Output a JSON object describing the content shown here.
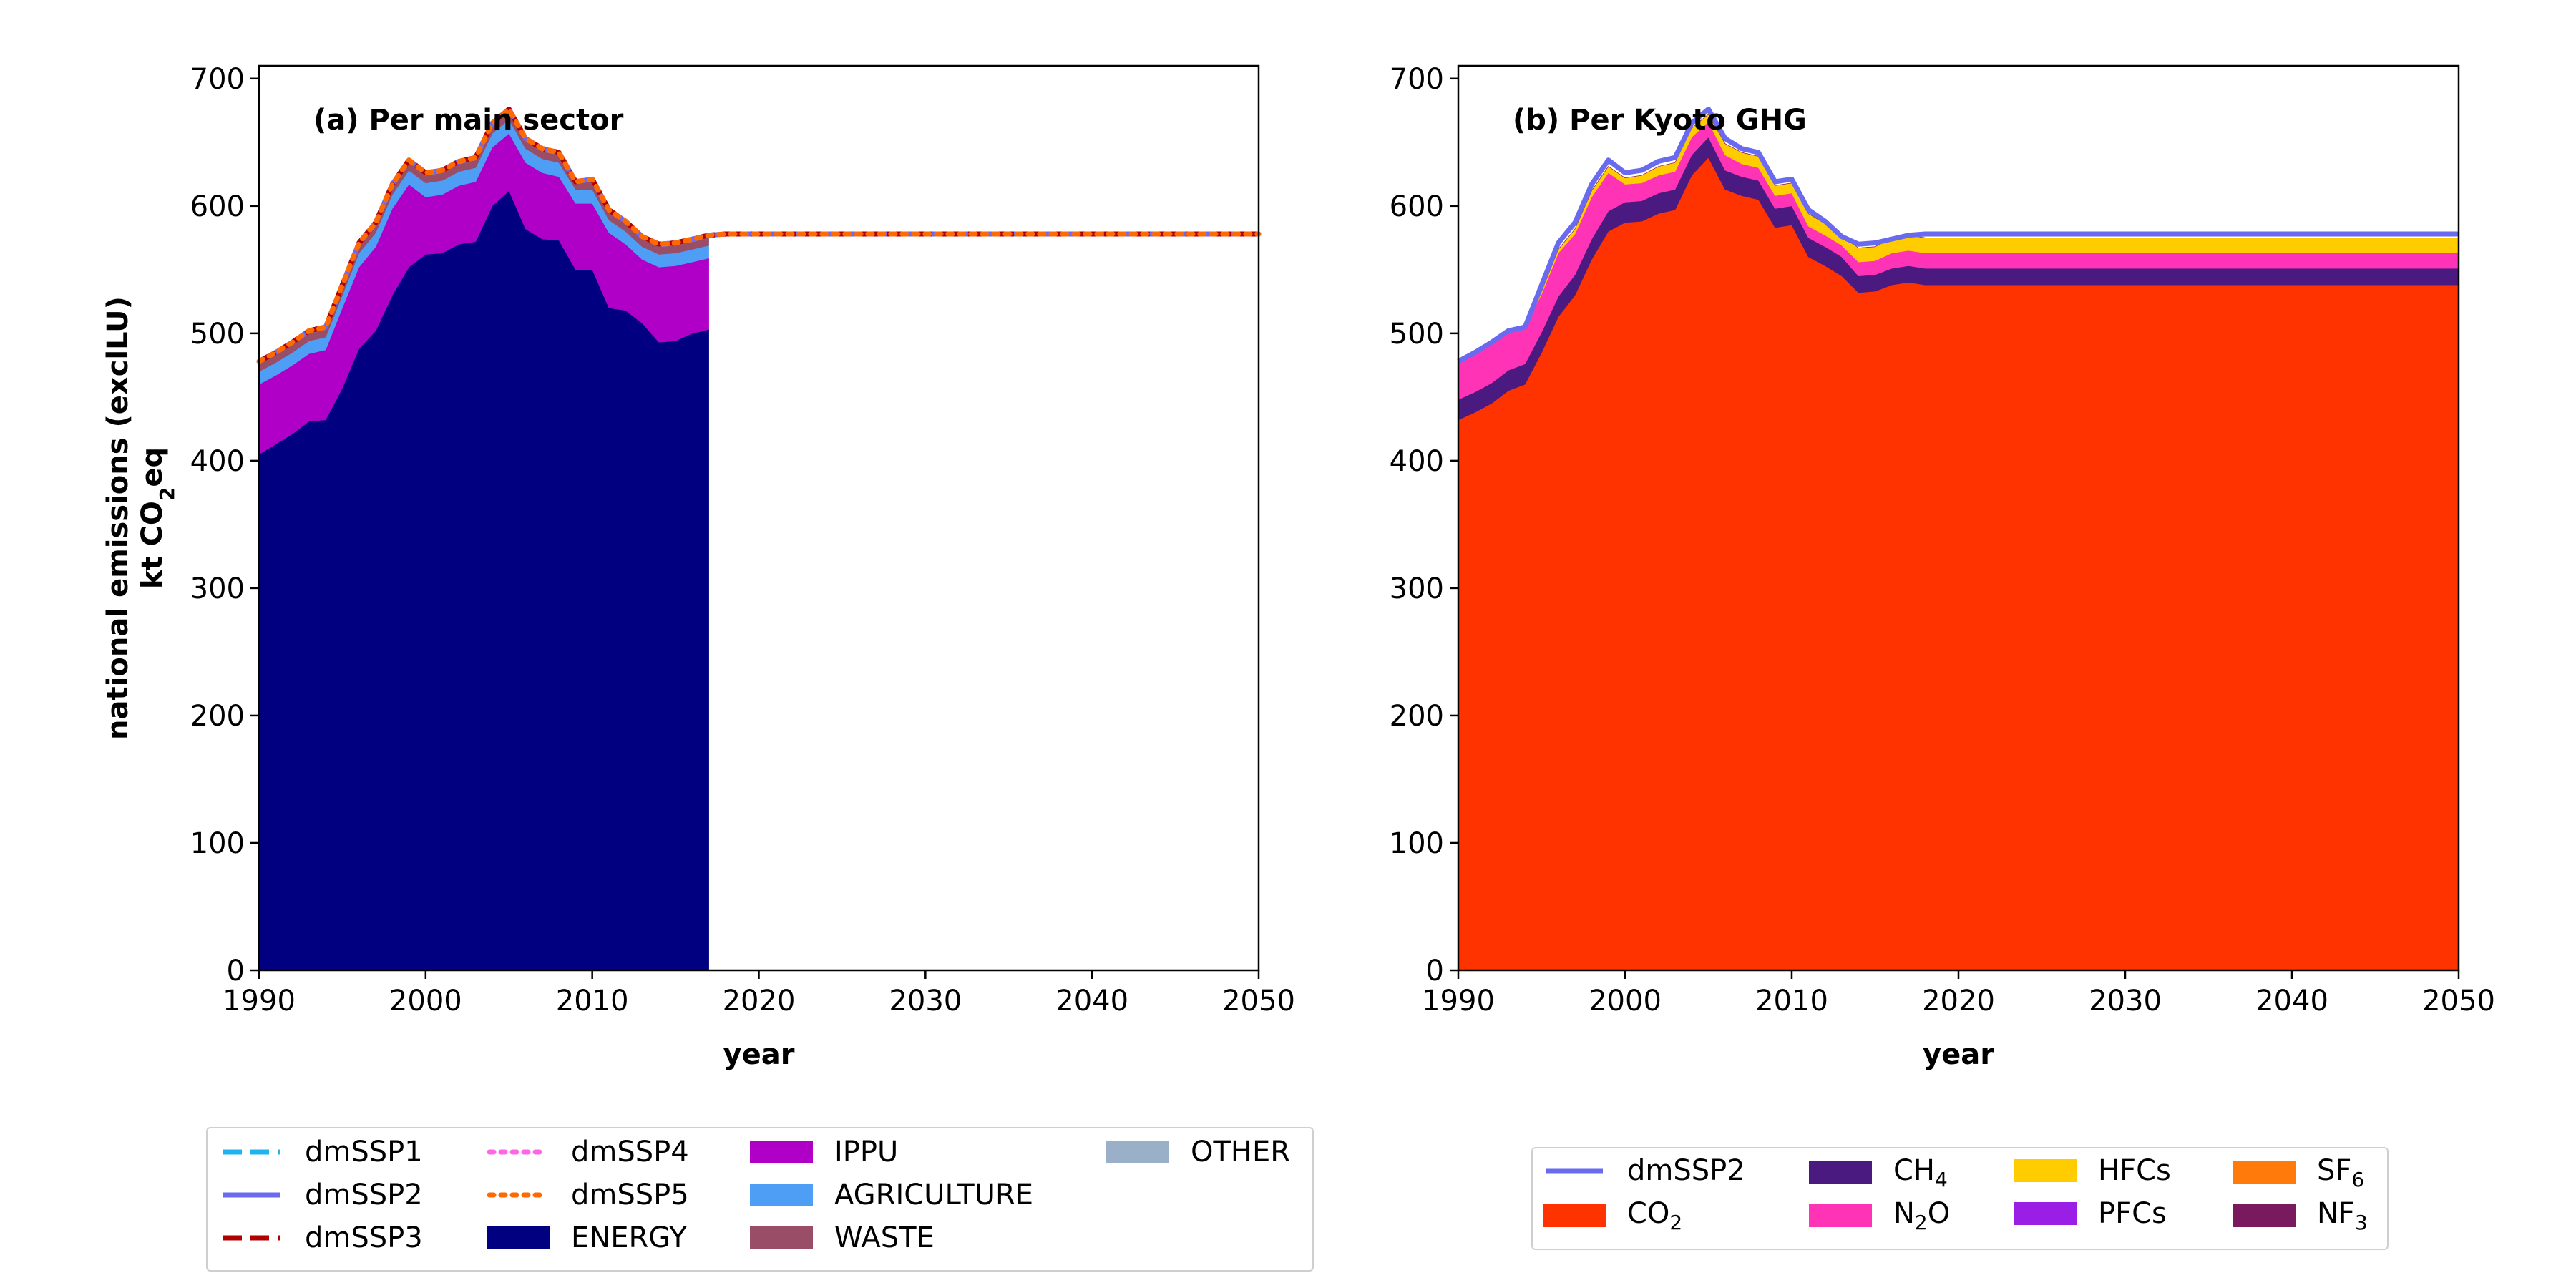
{
  "chart_data": [
    {
      "type": "area",
      "title": "(a) Per main sector",
      "xlabel": "year",
      "ylabel_line1": "national emissions (exclLU)",
      "ylabel_line2": "kt CO₂eq",
      "xlim": [
        1990,
        2050
      ],
      "ylim": [
        0,
        710
      ],
      "xticks": [
        1990,
        2000,
        2010,
        2020,
        2030,
        2040,
        2050
      ],
      "yticks": [
        0,
        100,
        200,
        300,
        400,
        500,
        600,
        700
      ],
      "grid": false,
      "legend_position": "below",
      "stack_years": [
        1990,
        1991,
        1992,
        1993,
        1994,
        1995,
        1996,
        1997,
        1998,
        1999,
        2000,
        2001,
        2002,
        2003,
        2004,
        2005,
        2006,
        2007,
        2008,
        2009,
        2010,
        2011,
        2012,
        2013,
        2014,
        2015,
        2016,
        2017
      ],
      "stacked_series": [
        {
          "name": "ENERGY",
          "color": "#000080",
          "values": [
            405,
            413,
            421,
            431,
            432,
            457,
            488,
            502,
            530,
            552,
            562,
            563,
            570,
            572,
            600,
            612,
            582,
            574,
            573,
            550,
            550,
            520,
            518,
            508,
            493,
            494,
            500,
            503
          ]
        },
        {
          "name": "IPPU",
          "color": "#b000c8",
          "values": [
            55,
            54,
            54,
            53,
            55,
            63,
            64,
            66,
            68,
            65,
            45,
            46,
            46,
            47,
            46,
            45,
            52,
            52,
            50,
            52,
            52,
            59,
            52,
            50,
            59,
            59,
            56,
            56
          ]
        },
        {
          "name": "AGRICULTURE",
          "color": "#4f9ef5",
          "values": [
            10,
            10,
            10,
            10,
            10,
            10,
            11,
            11,
            11,
            11,
            11,
            11,
            11,
            11,
            11,
            11,
            11,
            11,
            11,
            11,
            11,
            10,
            10,
            10,
            10,
            10,
            10,
            10
          ]
        },
        {
          "name": "WASTE",
          "color": "#994d66",
          "values": [
            6,
            6,
            6,
            6,
            6,
            6,
            6,
            6,
            6,
            6,
            6,
            6,
            6,
            6,
            6,
            6,
            6,
            6,
            6,
            6,
            6,
            6,
            6,
            6,
            6,
            6,
            6,
            6
          ]
        },
        {
          "name": "OTHER",
          "color": "#9ab0c8",
          "values": [
            2,
            2,
            2,
            2,
            2,
            2,
            2,
            2,
            2,
            2,
            2,
            2,
            2,
            2,
            2,
            2,
            2,
            2,
            2,
            2,
            2,
            2,
            2,
            2,
            2,
            2,
            2,
            2
          ]
        }
      ],
      "line_years": [
        1990,
        1991,
        1992,
        1993,
        1994,
        1995,
        1996,
        1997,
        1998,
        1999,
        2000,
        2001,
        2002,
        2003,
        2004,
        2005,
        2006,
        2007,
        2008,
        2009,
        2010,
        2011,
        2012,
        2013,
        2014,
        2015,
        2016,
        2017,
        2018,
        2050
      ],
      "line_values": [
        478,
        485,
        493,
        502,
        505,
        538,
        571,
        587,
        617,
        636,
        626,
        628,
        635,
        638,
        665,
        676,
        653,
        645,
        642,
        619,
        621,
        597,
        588,
        576,
        570,
        571,
        574,
        577,
        578,
        578
      ],
      "line_series": [
        {
          "name": "dmSSP1",
          "color": "#1fb4f0",
          "dash": "dashed"
        },
        {
          "name": "dmSSP2",
          "color": "#6a6af0",
          "dash": "solid"
        },
        {
          "name": "dmSSP3",
          "color": "#b00000",
          "dash": "dashed"
        },
        {
          "name": "dmSSP4",
          "color": "#ff66e6",
          "dash": "dotted"
        },
        {
          "name": "dmSSP5",
          "color": "#ff6a00",
          "dash": "dotted"
        }
      ]
    },
    {
      "type": "area",
      "title": "(b) Per Kyoto GHG",
      "xlabel": "year",
      "xlim": [
        1990,
        2050
      ],
      "ylim": [
        0,
        710
      ],
      "xticks": [
        1990,
        2000,
        2010,
        2020,
        2030,
        2040,
        2050
      ],
      "yticks": [
        0,
        100,
        200,
        300,
        400,
        500,
        600,
        700
      ],
      "grid": false,
      "legend_position": "below",
      "stack_years": [
        1990,
        1991,
        1992,
        1993,
        1994,
        1995,
        1996,
        1997,
        1998,
        1999,
        2000,
        2001,
        2002,
        2003,
        2004,
        2005,
        2006,
        2007,
        2008,
        2009,
        2010,
        2011,
        2012,
        2013,
        2014,
        2015,
        2016,
        2017,
        2018,
        2050
      ],
      "stacked_series": [
        {
          "name": "CO₂",
          "color": "#ff3300",
          "values": [
            432,
            438,
            445,
            455,
            460,
            485,
            513,
            530,
            558,
            580,
            587,
            588,
            594,
            597,
            624,
            638,
            613,
            608,
            605,
            583,
            585,
            560,
            553,
            545,
            532,
            533,
            538,
            540,
            538,
            538
          ]
        },
        {
          "name": "CH₄",
          "color": "#4b1a80",
          "values": [
            16,
            16,
            16,
            16,
            16,
            16,
            16,
            16,
            16,
            16,
            16,
            16,
            16,
            16,
            16,
            16,
            15,
            15,
            15,
            15,
            15,
            15,
            15,
            15,
            13,
            13,
            13,
            13,
            13,
            13
          ]
        },
        {
          "name": "N₂O",
          "color": "#ff33b5",
          "values": [
            30,
            31,
            32,
            31,
            29,
            30,
            34,
            32,
            33,
            30,
            14,
            14,
            14,
            14,
            14,
            12,
            12,
            10,
            10,
            10,
            10,
            9,
            9,
            9,
            11,
            11,
            12,
            12,
            12,
            12
          ]
        },
        {
          "name": "HFCs",
          "color": "#ffcc00",
          "values": [
            0,
            0,
            0,
            0,
            0,
            2,
            3,
            4,
            5,
            5,
            5,
            6,
            7,
            7,
            7,
            6,
            9,
            9,
            9,
            8,
            8,
            10,
            9,
            8,
            11,
            11,
            12,
            12,
            12,
            12
          ]
        },
        {
          "name": "PFCs",
          "color": "#9b1ee6",
          "values": [
            0,
            0,
            0,
            0,
            0,
            0,
            0,
            0,
            0,
            0,
            0,
            0,
            0,
            0,
            0,
            0,
            0,
            0,
            0,
            0,
            0,
            0,
            0,
            0,
            0,
            0,
            0,
            0,
            0,
            0
          ]
        },
        {
          "name": "SF₆",
          "color": "#ff7a0a",
          "values": [
            0,
            0,
            0,
            0,
            0,
            0,
            0,
            0,
            0,
            0,
            0,
            0,
            0,
            0,
            0,
            0,
            0,
            0,
            0,
            0,
            0,
            0,
            0,
            0,
            0,
            0,
            0,
            0,
            0,
            0
          ]
        },
        {
          "name": "NF₃",
          "color": "#7a1a5e",
          "values": [
            0,
            0,
            0,
            0,
            0,
            0,
            0,
            0,
            0,
            0,
            0,
            0,
            0,
            0,
            0,
            0,
            0,
            0,
            0,
            0,
            0,
            0,
            0,
            0,
            0,
            0,
            0,
            0,
            0,
            0
          ]
        }
      ],
      "line_years": [
        1990,
        1991,
        1992,
        1993,
        1994,
        1995,
        1996,
        1997,
        1998,
        1999,
        2000,
        2001,
        2002,
        2003,
        2004,
        2005,
        2006,
        2007,
        2008,
        2009,
        2010,
        2011,
        2012,
        2013,
        2014,
        2015,
        2016,
        2017,
        2018,
        2050
      ],
      "line_values": [
        478,
        485,
        493,
        502,
        505,
        538,
        571,
        587,
        617,
        636,
        626,
        628,
        635,
        638,
        665,
        676,
        653,
        645,
        642,
        619,
        621,
        597,
        588,
        576,
        570,
        571,
        574,
        577,
        578,
        578
      ],
      "line_series": [
        {
          "name": "dmSSP2",
          "color": "#6a6af0",
          "dash": "solid"
        }
      ]
    }
  ]
}
